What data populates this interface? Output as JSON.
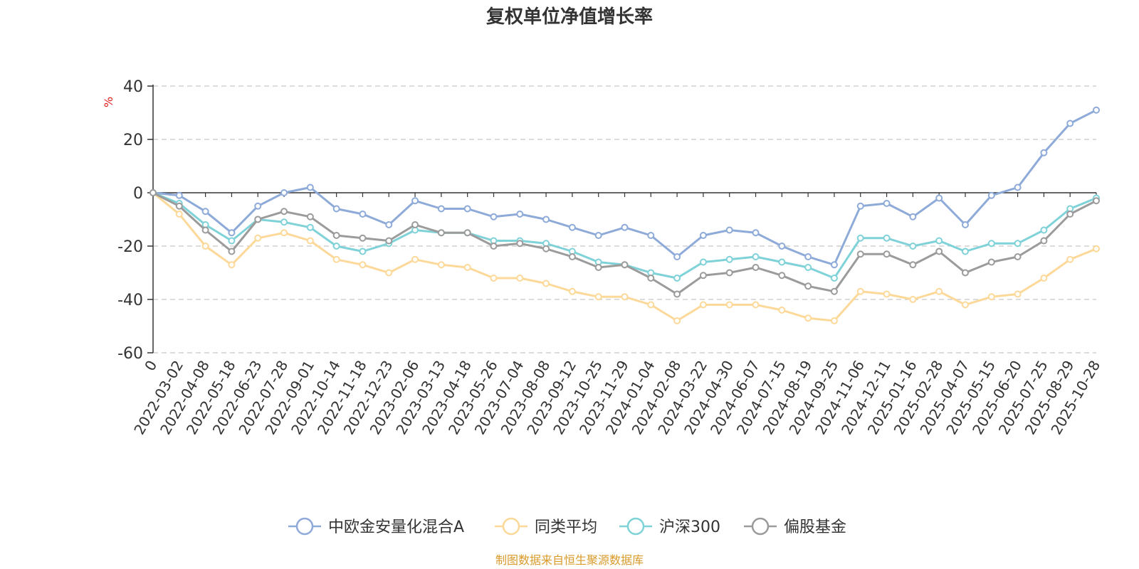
{
  "chart_data": {
    "type": "line",
    "title": "复权单位净值增长率",
    "ylabel": "%",
    "ylim": [
      -60,
      40
    ],
    "yticks": [
      40,
      20,
      0,
      -20,
      -40,
      -60
    ],
    "categories": [
      "0",
      "2022-03-02",
      "2022-04-08",
      "2022-05-18",
      "2022-06-23",
      "2022-07-28",
      "2022-09-01",
      "2022-10-14",
      "2022-11-18",
      "2022-12-23",
      "2023-02-06",
      "2023-03-13",
      "2023-04-18",
      "2023-05-26",
      "2023-07-04",
      "2023-08-08",
      "2023-09-12",
      "2023-10-25",
      "2023-11-29",
      "2024-01-04",
      "2024-02-08",
      "2024-03-22",
      "2024-04-30",
      "2024-06-07",
      "2024-07-15",
      "2024-08-19",
      "2024-09-25",
      "2024-11-06",
      "2024-12-11",
      "2025-01-16",
      "2025-02-28",
      "2025-04-07",
      "2025-05-15",
      "2025-06-20",
      "2025-07-25",
      "2025-08-29",
      "2025-10-28"
    ],
    "series": [
      {
        "name": "中欧金安量化混合A",
        "color": "#8eaad8",
        "values": [
          0,
          -1,
          -7,
          -15,
          -5,
          0,
          2,
          -6,
          -8,
          -12,
          -3,
          -6,
          -6,
          -9,
          -8,
          -10,
          -13,
          -16,
          -13,
          -16,
          -24,
          -16,
          -14,
          -15,
          -20,
          -24,
          -27,
          -5,
          -4,
          -9,
          -2,
          -12,
          -1,
          2,
          15,
          26,
          31
        ]
      },
      {
        "name": "同类平均",
        "color": "#fcd899",
        "values": [
          0,
          -8,
          -20,
          -27,
          -17,
          -15,
          -18,
          -25,
          -27,
          -30,
          -25,
          -27,
          -28,
          -32,
          -32,
          -34,
          -37,
          -39,
          -39,
          -42,
          -48,
          -42,
          -42,
          -42,
          -44,
          -47,
          -48,
          -37,
          -38,
          -40,
          -37,
          -42,
          -39,
          -38,
          -32,
          -25,
          -21
        ]
      },
      {
        "name": "沪深300",
        "color": "#7fd2d8",
        "values": [
          0,
          -4,
          -12,
          -18,
          -10,
          -11,
          -13,
          -20,
          -22,
          -19,
          -14,
          -15,
          -15,
          -18,
          -18,
          -19,
          -22,
          -26,
          -27,
          -30,
          -32,
          -26,
          -25,
          -24,
          -26,
          -28,
          -32,
          -17,
          -17,
          -20,
          -18,
          -22,
          -19,
          -19,
          -14,
          -6,
          -2
        ]
      },
      {
        "name": "偏股基金",
        "color": "#9b9b9b",
        "values": [
          0,
          -5,
          -14,
          -22,
          -10,
          -7,
          -9,
          -16,
          -17,
          -18,
          -12,
          -15,
          -15,
          -20,
          -19,
          -21,
          -24,
          -28,
          -27,
          -32,
          -38,
          -31,
          -30,
          -28,
          -31,
          -35,
          -37,
          -23,
          -23,
          -27,
          -22,
          -30,
          -26,
          -24,
          -18,
          -8,
          -3
        ]
      }
    ]
  },
  "source_text": "制图数据来自恒生聚源数据库",
  "colors": {
    "axis": "#333333",
    "grid": "#c8c8c8",
    "unit": "#e02020",
    "source": "#d89a2a"
  }
}
